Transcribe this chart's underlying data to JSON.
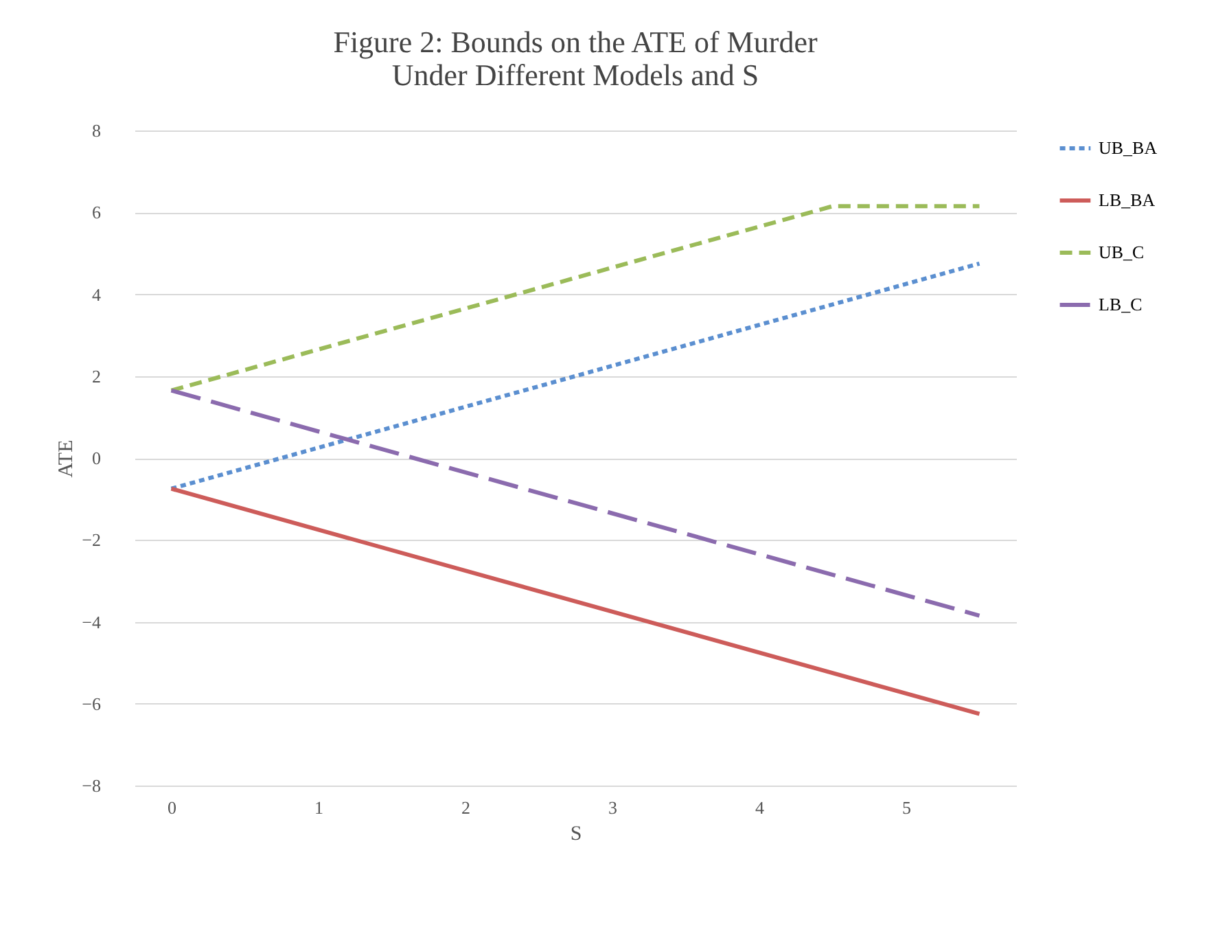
{
  "chart_data": {
    "type": "line",
    "title": "Figure 2: Bounds on the ATE of Murder\nUnder Different Models and S",
    "xlabel": "S",
    "ylabel": "ATE",
    "xlim": [
      -0.25,
      5.75
    ],
    "xticks": [
      0,
      1,
      2,
      3,
      4,
      5
    ],
    "ylim": [
      -8,
      8
    ],
    "yticks": [
      -8,
      -6,
      -4,
      -2,
      0,
      2,
      4,
      6,
      8
    ],
    "grid": "y",
    "legend": "right",
    "marker": "none",
    "series": [
      {
        "name": "UB_BA",
        "color": "#5b8fd0",
        "line_style": "dotted",
        "x": [
          0,
          5.5
        ],
        "values": [
          -0.75,
          4.75
        ]
      },
      {
        "name": "LB_BA",
        "color": "#cd5c5a",
        "line_style": "solid",
        "x": [
          0,
          5.5
        ],
        "values": [
          -0.75,
          -6.25
        ]
      },
      {
        "name": "UB_C",
        "color": "#9bbb59",
        "line_style": "dashed",
        "x": [
          0,
          4.5,
          5.5
        ],
        "values": [
          1.65,
          6.15,
          6.15
        ]
      },
      {
        "name": "LB_C",
        "color": "#8b6bae",
        "line_style": "longdash",
        "x": [
          0,
          5.5
        ],
        "values": [
          1.65,
          -3.85
        ]
      }
    ]
  }
}
